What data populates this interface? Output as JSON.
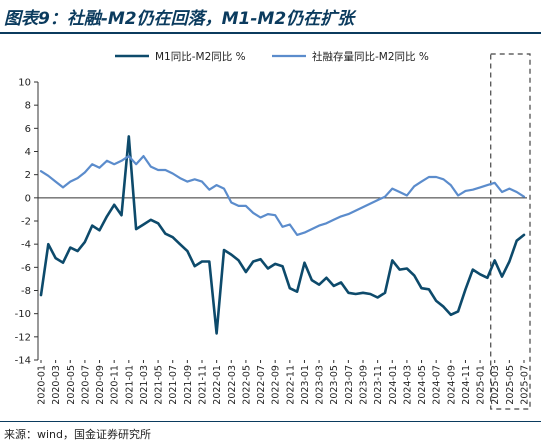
{
  "page": {
    "title": "图表9：社融-M2仍在回落，M1-M2仍在扩张",
    "source": "来源：wind，国金证券研究所"
  },
  "chart_data": {
    "type": "line",
    "title": "",
    "xlabel": "",
    "ylabel": "",
    "ylim": [
      -14,
      10
    ],
    "yticks": [
      -14,
      -12,
      -10,
      -8,
      -6,
      -4,
      -2,
      0,
      2,
      4,
      6,
      8,
      10
    ],
    "grid": false,
    "legend_position": "top",
    "x": [
      "2020-01",
      "2020-02",
      "2020-03",
      "2020-04",
      "2020-05",
      "2020-06",
      "2020-07",
      "2020-08",
      "2020-09",
      "2020-10",
      "2020-11",
      "2020-12",
      "2021-01",
      "2021-02",
      "2021-03",
      "2021-04",
      "2021-05",
      "2021-06",
      "2021-07",
      "2021-08",
      "2021-09",
      "2021-10",
      "2021-11",
      "2021-12",
      "2022-01",
      "2022-02",
      "2022-03",
      "2022-04",
      "2022-05",
      "2022-06",
      "2022-07",
      "2022-08",
      "2022-09",
      "2022-10",
      "2022-11",
      "2022-12",
      "2023-01",
      "2023-02",
      "2023-03",
      "2023-04",
      "2023-05",
      "2023-06",
      "2023-07",
      "2023-08",
      "2023-09",
      "2023-10",
      "2023-11",
      "2023-12",
      "2024-01",
      "2024-02",
      "2024-03",
      "2024-04",
      "2024-05",
      "2024-06",
      "2024-07",
      "2024-08",
      "2024-09",
      "2024-10",
      "2024-11",
      "2024-12",
      "2025-01",
      "2025-02",
      "2025-03",
      "2025-04",
      "2025-05",
      "2025-06",
      "2025-07"
    ],
    "xtick_labels": [
      "2020-01",
      "2020-03",
      "2020-05",
      "2020-07",
      "2020-09",
      "2020-11",
      "2021-01",
      "2021-03",
      "2021-05",
      "2021-07",
      "2021-09",
      "2021-11",
      "2022-01",
      "2022-03",
      "2022-05",
      "2022-07",
      "2022-09",
      "2022-11",
      "2023-01",
      "2023-03",
      "2023-05",
      "2023-07",
      "2023-09",
      "2023-11",
      "2024-01",
      "2024-03",
      "2024-05",
      "2024-07",
      "2024-09",
      "2024-11",
      "2025-01",
      "2025-03",
      "2025-05",
      "2025-07"
    ],
    "series": [
      {
        "name": "M1同比-M2同比 %",
        "color": "#0d4a6b",
        "line_width": 2.6,
        "values": [
          -8.4,
          -4.0,
          -5.2,
          -5.6,
          -4.3,
          -4.6,
          -3.8,
          -2.4,
          -2.8,
          -1.6,
          -0.6,
          -1.5,
          5.3,
          -2.7,
          -2.3,
          -1.9,
          -2.2,
          -3.1,
          -3.4,
          -4.0,
          -4.6,
          -5.9,
          -5.5,
          -5.5,
          -11.7,
          -4.5,
          -4.9,
          -5.4,
          -6.4,
          -5.5,
          -5.3,
          -6.1,
          -5.7,
          -5.9,
          -7.8,
          -8.1,
          -5.6,
          -7.1,
          -7.5,
          -6.9,
          -7.6,
          -7.3,
          -8.2,
          -8.3,
          -8.2,
          -8.3,
          -8.6,
          -8.2,
          -5.4,
          -6.2,
          -6.1,
          -6.7,
          -7.8,
          -7.9,
          -8.9,
          -9.4,
          -10.1,
          -9.8,
          -7.9,
          -6.2,
          -6.6,
          -6.9,
          -5.4,
          -6.8,
          -5.5,
          -3.7,
          -3.2
        ]
      },
      {
        "name": "社融存量同比-M2同比 %",
        "color": "#5b8ccc",
        "line_width": 2.2,
        "values": [
          2.3,
          1.9,
          1.4,
          0.9,
          1.4,
          1.7,
          2.2,
          2.9,
          2.6,
          3.2,
          2.9,
          3.2,
          3.6,
          2.9,
          3.6,
          2.7,
          2.4,
          2.4,
          2.1,
          1.7,
          1.4,
          1.6,
          1.4,
          0.7,
          1.1,
          0.8,
          -0.4,
          -0.7,
          -0.7,
          -1.3,
          -1.7,
          -1.4,
          -1.5,
          -2.5,
          -2.3,
          -3.2,
          -3.0,
          -2.7,
          -2.4,
          -2.2,
          -1.9,
          -1.6,
          -1.4,
          -1.1,
          -0.8,
          -0.5,
          -0.2,
          0.1,
          0.8,
          0.5,
          0.2,
          1.0,
          1.4,
          1.8,
          1.8,
          1.6,
          1.1,
          0.2,
          0.6,
          0.7,
          0.9,
          1.1,
          1.3,
          0.5,
          0.8,
          0.5,
          0.1
        ]
      }
    ],
    "highlight": {
      "from": "2025-03",
      "to": "2025-07",
      "style": "dashed box"
    }
  }
}
